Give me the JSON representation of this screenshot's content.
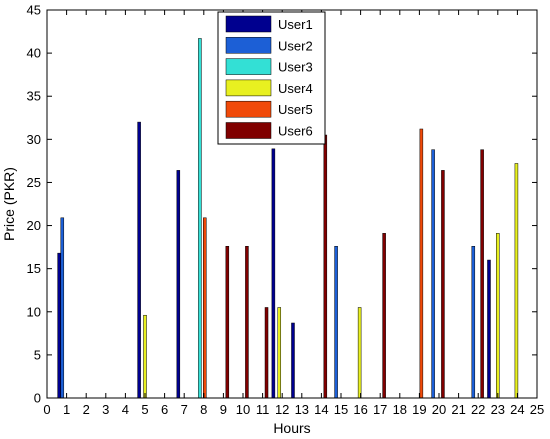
{
  "chart_data": {
    "type": "bar",
    "xlabel": "Hours",
    "ylabel": "Price (PKR)",
    "xlim": [
      0,
      25
    ],
    "ylim": [
      0,
      45
    ],
    "xticks": [
      "0",
      "1",
      "2",
      "3",
      "4",
      "5",
      "6",
      "7",
      "8",
      "9",
      "10",
      "11",
      "12",
      "13",
      "14",
      "15",
      "16",
      "17",
      "18",
      "19",
      "20",
      "21",
      "22",
      "23",
      "24",
      "25"
    ],
    "yticks": [
      "0",
      "5",
      "10",
      "15",
      "20",
      "25",
      "30",
      "35",
      "40",
      "45"
    ],
    "grid": false,
    "legend": {
      "position": "top-center"
    },
    "series": [
      {
        "name": "User1",
        "color": "#00008F",
        "x": [
          0.62,
          4.7,
          6.7,
          11.55,
          12.55,
          22.55
        ],
        "values": [
          16.8,
          32.0,
          26.4,
          28.9,
          8.7,
          16.0
        ]
      },
      {
        "name": "User2",
        "color": "#1C5FD6",
        "x": [
          0.78,
          14.75,
          19.7,
          21.75
        ],
        "values": [
          20.9,
          17.6,
          28.8,
          17.6
        ]
      },
      {
        "name": "User3",
        "color": "#33E0D5",
        "x": [
          7.8
        ],
        "values": [
          41.7
        ]
      },
      {
        "name": "User4",
        "color": "#E8F020",
        "x": [
          5.0,
          11.85,
          15.95,
          23.0,
          23.95
        ],
        "values": [
          9.6,
          10.5,
          10.5,
          19.1,
          27.2
        ]
      },
      {
        "name": "User5",
        "color": "#F04A0A",
        "x": [
          8.05,
          19.1
        ],
        "values": [
          20.9,
          31.2
        ]
      },
      {
        "name": "User6",
        "color": "#800000",
        "x": [
          9.2,
          10.2,
          11.2,
          14.2,
          17.2,
          20.2,
          22.2
        ],
        "values": [
          17.6,
          17.6,
          10.5,
          30.5,
          19.1,
          26.4,
          28.8
        ]
      }
    ]
  }
}
